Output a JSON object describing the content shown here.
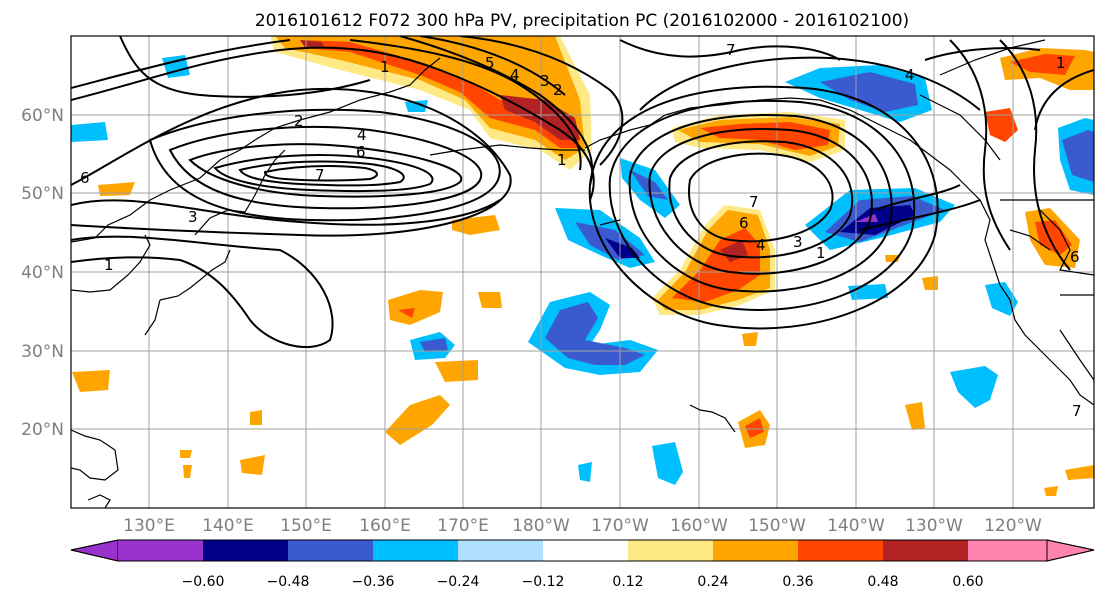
{
  "title": "2016101612 F072 300 hPa PV, precipitation PC (2016102000 - 2016102100)",
  "longitude_labels": [
    "130°E",
    "140°E",
    "150°E",
    "160°E",
    "170°E",
    "180°W",
    "170°W",
    "160°W",
    "150°W",
    "140°W",
    "130°W",
    "120°W"
  ],
  "latitude_labels": [
    "60°N",
    "50°N",
    "40°N",
    "30°N",
    "20°N"
  ],
  "colorbar": {
    "tick_labels": [
      "−0.60",
      "−0.48",
      "−0.36",
      "−0.24",
      "−0.12",
      "0.12",
      "0.24",
      "0.36",
      "0.48",
      "0.60"
    ],
    "bins": [
      {
        "color": "#9932cc"
      },
      {
        "color": "#00008b"
      },
      {
        "color": "#3a5bd0"
      },
      {
        "color": "#00bfff"
      },
      {
        "color": "#b0e2ff"
      },
      {
        "color": "#ffffff"
      },
      {
        "color": "#ffe985"
      },
      {
        "color": "#ffa500"
      },
      {
        "color": "#ff4500"
      },
      {
        "color": "#b22222"
      },
      {
        "color": "#ff85b0"
      }
    ]
  },
  "pv_contour_labels": [
    "1",
    "2",
    "3",
    "4",
    "5",
    "6",
    "7"
  ]
}
